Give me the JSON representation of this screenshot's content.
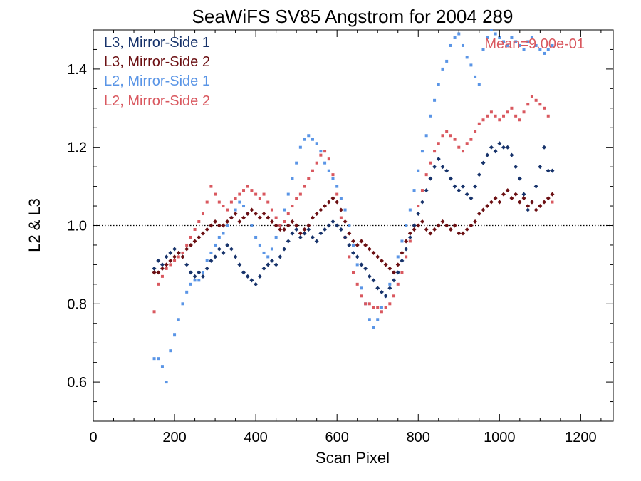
{
  "chart_data": {
    "type": "scatter",
    "title": "SeaWiFS SV85 Angstrom for 2004 289",
    "xlabel": "Scan Pixel",
    "ylabel": "L2 & L3",
    "xlim": [
      0,
      1280
    ],
    "ylim": [
      0.5,
      1.5
    ],
    "x_ticks": [
      "0",
      "200",
      "400",
      "600",
      "800",
      "1000",
      "1200"
    ],
    "y_ticks": [
      "0.6",
      "0.8",
      "1.0",
      "1.2",
      "1.4"
    ],
    "reference_line": 1.0,
    "annotation": "Mean=9.00e-01",
    "legend_position": "top-left",
    "colors": {
      "l3_ms1": "#17336b",
      "l3_ms2": "#6b0f12",
      "l2_ms1": "#5a95e6",
      "l2_ms2": "#d9585f",
      "annotation": "#d9585f"
    },
    "series": [
      {
        "name": "L3, Mirror-Side 1",
        "marker": "diamond",
        "x": [
          150,
          160,
          170,
          180,
          190,
          200,
          210,
          220,
          230,
          240,
          250,
          260,
          270,
          280,
          290,
          300,
          310,
          320,
          330,
          340,
          350,
          360,
          370,
          380,
          390,
          400,
          410,
          420,
          430,
          440,
          450,
          460,
          470,
          480,
          490,
          500,
          510,
          520,
          530,
          540,
          550,
          560,
          570,
          580,
          590,
          600,
          610,
          620,
          630,
          640,
          650,
          660,
          670,
          680,
          690,
          700,
          710,
          720,
          730,
          740,
          750,
          760,
          770,
          780,
          790,
          800,
          810,
          820,
          830,
          840,
          850,
          860,
          870,
          880,
          890,
          900,
          910,
          920,
          930,
          940,
          950,
          960,
          970,
          980,
          990,
          1000,
          1010,
          1020,
          1030,
          1040,
          1050,
          1060,
          1070,
          1080,
          1090,
          1100,
          1110,
          1120,
          1130
        ],
        "y": [
          0.89,
          0.91,
          0.9,
          0.92,
          0.93,
          0.94,
          0.93,
          0.92,
          0.9,
          0.88,
          0.87,
          0.88,
          0.87,
          0.89,
          0.91,
          0.92,
          0.94,
          0.93,
          0.95,
          0.94,
          0.92,
          0.9,
          0.88,
          0.87,
          0.86,
          0.85,
          0.87,
          0.89,
          0.9,
          0.91,
          0.9,
          0.92,
          0.94,
          0.96,
          0.98,
          0.99,
          0.97,
          0.98,
          0.99,
          0.97,
          0.96,
          0.98,
          0.99,
          1.0,
          1.01,
          1.0,
          0.99,
          0.97,
          0.95,
          0.93,
          0.92,
          0.9,
          0.89,
          0.87,
          0.86,
          0.84,
          0.83,
          0.82,
          0.84,
          0.86,
          0.88,
          0.91,
          0.94,
          0.97,
          1.0,
          1.03,
          1.06,
          1.09,
          1.12,
          1.15,
          1.17,
          1.15,
          1.14,
          1.12,
          1.1,
          1.09,
          1.1,
          1.08,
          1.07,
          1.1,
          1.13,
          1.16,
          1.18,
          1.2,
          1.19,
          1.21,
          1.2,
          1.2,
          1.18,
          1.15,
          1.12,
          1.08,
          1.04,
          1.06,
          1.1,
          1.15,
          1.2,
          1.14,
          1.14
        ]
      },
      {
        "name": "L3, Mirror-Side 2",
        "marker": "diamond",
        "x": [
          150,
          160,
          170,
          180,
          190,
          200,
          210,
          220,
          230,
          240,
          250,
          260,
          270,
          280,
          290,
          300,
          310,
          320,
          330,
          340,
          350,
          360,
          370,
          380,
          390,
          400,
          410,
          420,
          430,
          440,
          450,
          460,
          470,
          480,
          490,
          500,
          510,
          520,
          530,
          540,
          550,
          560,
          570,
          580,
          590,
          600,
          610,
          620,
          630,
          640,
          650,
          660,
          670,
          680,
          690,
          700,
          710,
          720,
          730,
          740,
          750,
          760,
          770,
          780,
          790,
          800,
          810,
          820,
          830,
          840,
          850,
          860,
          870,
          880,
          890,
          900,
          910,
          920,
          930,
          940,
          950,
          960,
          970,
          980,
          990,
          1000,
          1010,
          1020,
          1030,
          1040,
          1050,
          1060,
          1070,
          1080,
          1090,
          1100,
          1110,
          1120,
          1130
        ],
        "y": [
          0.88,
          0.88,
          0.89,
          0.9,
          0.91,
          0.92,
          0.93,
          0.92,
          0.94,
          0.95,
          0.96,
          0.97,
          0.98,
          0.99,
          1.0,
          1.01,
          1.0,
          1.0,
          1.01,
          1.02,
          1.03,
          1.01,
          1.02,
          1.03,
          1.04,
          1.03,
          1.02,
          1.03,
          1.02,
          1.01,
          1.0,
          0.99,
          0.99,
          1.0,
          1.01,
          1.0,
          0.98,
          0.99,
          1.0,
          1.02,
          1.03,
          1.04,
          1.05,
          1.06,
          1.07,
          1.06,
          1.04,
          1.01,
          0.98,
          0.96,
          0.95,
          0.96,
          0.95,
          0.94,
          0.93,
          0.92,
          0.91,
          0.9,
          0.89,
          0.88,
          0.9,
          0.93,
          0.96,
          0.98,
          0.99,
          1.0,
          1.01,
          0.99,
          0.98,
          0.99,
          1.0,
          1.01,
          1.0,
          0.99,
          1.0,
          0.98,
          0.98,
          0.99,
          1.0,
          1.01,
          1.03,
          1.04,
          1.05,
          1.06,
          1.07,
          1.06,
          1.08,
          1.09,
          1.07,
          1.08,
          1.06,
          1.07,
          1.05,
          1.06,
          1.04,
          1.05,
          1.06,
          1.07,
          1.08
        ]
      },
      {
        "name": "L2, Mirror-Side 1",
        "marker": "square",
        "x": [
          150,
          160,
          170,
          180,
          190,
          200,
          210,
          220,
          230,
          240,
          250,
          260,
          270,
          280,
          290,
          300,
          310,
          320,
          330,
          340,
          350,
          360,
          370,
          380,
          390,
          400,
          410,
          420,
          430,
          440,
          450,
          460,
          470,
          480,
          490,
          500,
          510,
          520,
          530,
          540,
          550,
          560,
          570,
          580,
          590,
          600,
          610,
          620,
          630,
          640,
          650,
          660,
          670,
          680,
          690,
          700,
          710,
          720,
          730,
          740,
          750,
          760,
          770,
          780,
          790,
          800,
          810,
          820,
          830,
          840,
          850,
          860,
          870,
          880,
          890,
          900,
          910,
          920,
          930,
          940,
          950,
          960,
          970,
          980,
          990,
          1000,
          1010,
          1020,
          1030,
          1040,
          1050,
          1060,
          1070,
          1080,
          1090,
          1100,
          1110,
          1120,
          1130
        ],
        "y": [
          0.66,
          0.66,
          0.64,
          0.6,
          0.68,
          0.72,
          0.76,
          0.8,
          0.83,
          0.85,
          0.86,
          0.86,
          0.88,
          0.91,
          0.93,
          0.95,
          0.97,
          0.98,
          1.0,
          1.02,
          1.04,
          1.06,
          1.05,
          1.03,
          1.0,
          0.97,
          0.95,
          0.93,
          0.92,
          0.94,
          0.97,
          1.0,
          1.04,
          1.08,
          1.12,
          1.16,
          1.2,
          1.22,
          1.23,
          1.22,
          1.21,
          1.19,
          1.16,
          1.14,
          1.12,
          1.1,
          1.07,
          1.04,
          1.0,
          0.95,
          0.9,
          0.84,
          0.8,
          0.76,
          0.74,
          0.76,
          0.79,
          0.82,
          0.85,
          0.88,
          0.92,
          0.96,
          1.0,
          1.04,
          1.09,
          1.14,
          1.19,
          1.23,
          1.28,
          1.32,
          1.36,
          1.4,
          1.42,
          1.46,
          1.48,
          1.49,
          1.46,
          1.43,
          1.41,
          1.38,
          1.36,
          1.45,
          1.48,
          1.5,
          1.49,
          1.48,
          1.47,
          1.46,
          1.48,
          1.47,
          1.46,
          1.45,
          1.47,
          1.48,
          1.46,
          1.45,
          1.44,
          1.45,
          1.46
        ]
      },
      {
        "name": "L2, Mirror-Side 2",
        "marker": "square",
        "x": [
          150,
          160,
          170,
          180,
          190,
          200,
          210,
          220,
          230,
          240,
          250,
          260,
          270,
          280,
          290,
          300,
          310,
          320,
          330,
          340,
          350,
          360,
          370,
          380,
          390,
          400,
          410,
          420,
          430,
          440,
          450,
          460,
          470,
          480,
          490,
          500,
          510,
          520,
          530,
          540,
          550,
          560,
          570,
          580,
          590,
          600,
          610,
          620,
          630,
          640,
          650,
          660,
          670,
          680,
          690,
          700,
          710,
          720,
          730,
          740,
          750,
          760,
          770,
          780,
          790,
          800,
          810,
          820,
          830,
          840,
          850,
          860,
          870,
          880,
          890,
          900,
          910,
          920,
          930,
          940,
          950,
          960,
          970,
          980,
          990,
          1000,
          1010,
          1020,
          1030,
          1040,
          1050,
          1060,
          1070,
          1080,
          1090,
          1100,
          1110,
          1120,
          1130
        ],
        "y": [
          0.78,
          0.85,
          0.87,
          0.89,
          0.9,
          0.91,
          0.92,
          0.93,
          0.95,
          0.97,
          0.99,
          1.01,
          1.03,
          1.06,
          1.1,
          1.08,
          1.06,
          1.05,
          1.04,
          1.06,
          1.07,
          1.08,
          1.09,
          1.1,
          1.09,
          1.08,
          1.07,
          1.08,
          1.06,
          1.04,
          1.02,
          1.0,
          1.01,
          1.03,
          1.05,
          1.07,
          1.08,
          1.1,
          1.12,
          1.14,
          1.16,
          1.18,
          1.19,
          1.17,
          1.13,
          1.08,
          1.02,
          0.97,
          0.92,
          0.88,
          0.85,
          0.82,
          0.8,
          0.8,
          0.79,
          0.79,
          0.78,
          0.79,
          0.8,
          0.82,
          0.85,
          0.88,
          0.92,
          0.96,
          1.0,
          1.05,
          1.09,
          1.13,
          1.16,
          1.19,
          1.21,
          1.23,
          1.24,
          1.23,
          1.22,
          1.2,
          1.19,
          1.21,
          1.22,
          1.24,
          1.26,
          1.27,
          1.28,
          1.29,
          1.28,
          1.27,
          1.28,
          1.29,
          1.3,
          1.28,
          1.27,
          1.29,
          1.31,
          1.33,
          1.32,
          1.31,
          1.3,
          1.28,
          1.06
        ]
      }
    ]
  }
}
